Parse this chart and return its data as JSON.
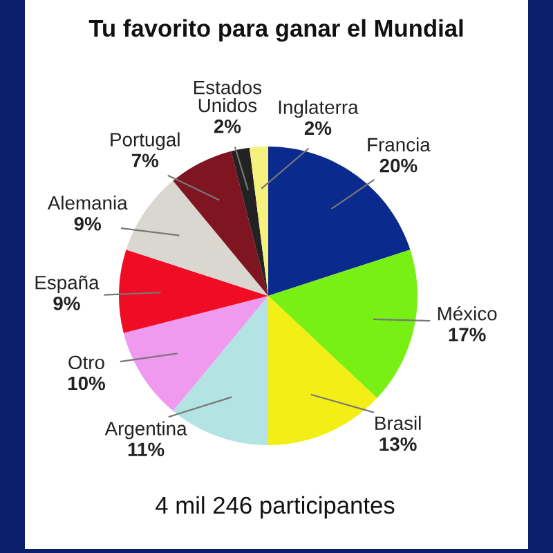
{
  "chart_data": {
    "type": "pie",
    "title": "Tu favorito para ganar el Mundial",
    "categories": [
      "Francia",
      "México",
      "Brasil",
      "Argentina",
      "Otro",
      "España",
      "Alemania",
      "Portugal",
      "Estados Unidos",
      "Inglaterra"
    ],
    "values": [
      20,
      17,
      13,
      11,
      10,
      9,
      9,
      7,
      2,
      2
    ],
    "colors": [
      "#0b2a8e",
      "#78f014",
      "#f2ee16",
      "#b3e3e3",
      "#ef9aef",
      "#f00c24",
      "#d9d7d0",
      "#7e1520",
      "#222222",
      "#f6f07c"
    ],
    "value_labels": [
      "20%",
      "17%",
      "13%",
      "11%",
      "10%",
      "9%",
      "9%",
      "7%",
      "2%",
      "2%"
    ],
    "annotations": [
      "4 mil 246 participantes"
    ]
  }
}
